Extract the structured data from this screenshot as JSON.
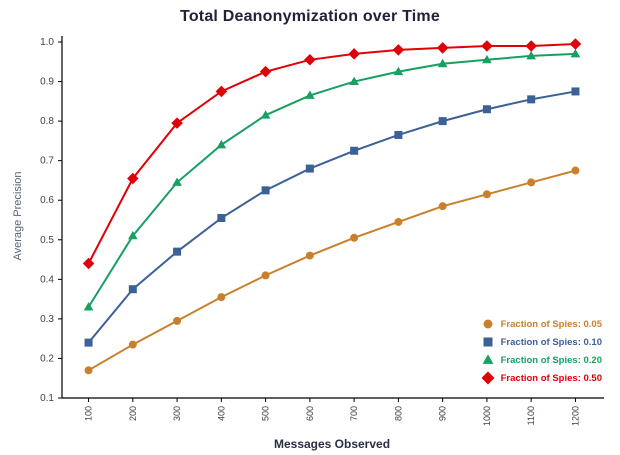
{
  "chart_data": {
    "type": "line",
    "title": "Total Deanonymization over Time",
    "xlabel": "Messages Observed",
    "ylabel": "Average Precision",
    "xlim": [
      40,
      1260
    ],
    "ylim": [
      0.1,
      1.0
    ],
    "yticks": [
      0.1,
      0.2,
      0.3,
      0.4,
      0.5,
      0.6,
      0.7,
      0.8,
      0.9,
      1.0
    ],
    "x": [
      100,
      200,
      300,
      400,
      500,
      600,
      700,
      800,
      900,
      1000,
      1100,
      1200
    ],
    "xticklabels": [
      "100",
      "200",
      "300",
      "400",
      "500",
      "600",
      "700",
      "800",
      "900",
      "1000",
      "1100",
      "1200"
    ],
    "grid": false,
    "legend_position": "lower right",
    "series": [
      {
        "name": "Fraction of Spies: 0.05",
        "color": "#C8802D",
        "marker": "circle",
        "values": [
          0.17,
          0.235,
          0.295,
          0.355,
          0.41,
          0.46,
          0.505,
          0.545,
          0.585,
          0.615,
          0.645,
          0.675
        ]
      },
      {
        "name": "Fraction of Spies: 0.10",
        "color": "#3B6197",
        "marker": "square",
        "values": [
          0.24,
          0.375,
          0.47,
          0.555,
          0.625,
          0.68,
          0.725,
          0.765,
          0.8,
          0.83,
          0.855,
          0.875
        ]
      },
      {
        "name": "Fraction of Spies: 0.20",
        "color": "#17A062",
        "marker": "triangle",
        "values": [
          0.33,
          0.51,
          0.645,
          0.74,
          0.815,
          0.865,
          0.9,
          0.925,
          0.945,
          0.955,
          0.965,
          0.97
        ]
      },
      {
        "name": "Fraction of Spies: 0.50",
        "color": "#E00007",
        "marker": "diamond",
        "values": [
          0.44,
          0.655,
          0.795,
          0.875,
          0.925,
          0.955,
          0.97,
          0.98,
          0.985,
          0.99,
          0.99,
          0.995
        ]
      }
    ]
  }
}
